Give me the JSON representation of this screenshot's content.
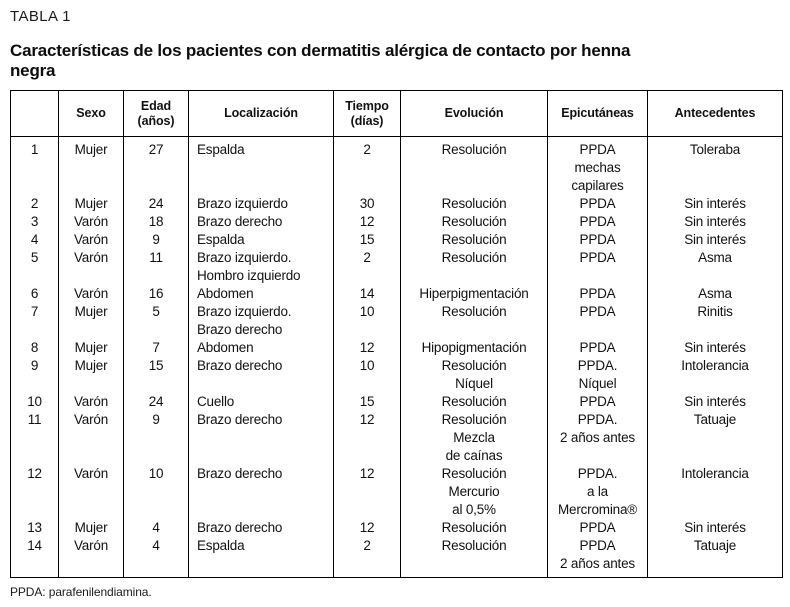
{
  "page": {
    "table_label": "TABLA 1",
    "title": "Características de los pacientes con dermatitis alérgica de contacto por henna\nnegra",
    "footnote": "PPDA: parafenilendiamina."
  },
  "table": {
    "headers": [
      "",
      "Sexo",
      "Edad\n(años)",
      "Localización",
      "Tiempo\n(días)",
      "Evolución",
      "Epicutáneas",
      "Antecedentes"
    ],
    "column_names": [
      "numero",
      "sexo",
      "edad",
      "localizacion",
      "tiempo",
      "evolucion",
      "epicutaneas",
      "antecedentes"
    ],
    "rows": [
      [
        "1",
        "Mujer",
        "27",
        "Espalda",
        "2",
        "Resolución",
        "PPDA\nmechas\ncapilares",
        "Toleraba"
      ],
      [
        "2",
        "Mujer",
        "24",
        "Brazo izquierdo",
        "30",
        "Resolución",
        "PPDA",
        "Sin interés"
      ],
      [
        "3",
        "Varón",
        "18",
        "Brazo derecho",
        "12",
        "Resolución",
        "PPDA",
        "Sin interés"
      ],
      [
        "4",
        "Varón",
        "9",
        "Espalda",
        "15",
        "Resolución",
        "PPDA",
        "Sin interés"
      ],
      [
        "5",
        "Varón",
        "11",
        "Brazo izquierdo.\nHombro izquierdo",
        "2",
        "Resolución",
        "PPDA",
        "Asma"
      ],
      [
        "6",
        "Varón",
        "16",
        "Abdomen",
        "14",
        "Hiperpigmentación",
        "PPDA",
        "Asma"
      ],
      [
        "7",
        "Mujer",
        "5",
        "Brazo izquierdo.\nBrazo derecho",
        "10",
        "Resolución",
        "PPDA",
        "Rinitis"
      ],
      [
        "8",
        "Mujer",
        "7",
        "Abdomen",
        "12",
        "Hipopigmentación",
        "PPDA",
        "Sin interés"
      ],
      [
        "9",
        "Mujer",
        "15",
        "Brazo derecho",
        "10",
        "Resolución\nNíquel",
        "PPDA.\nNíquel",
        "Intolerancia"
      ],
      [
        "10",
        "Varón",
        "24",
        "Cuello",
        "15",
        "Resolución",
        "PPDA",
        "Sin interés"
      ],
      [
        "11",
        "Varón",
        "9",
        "Brazo derecho",
        "12",
        "Resolución\nMezcla\nde caínas",
        "PPDA.\n2 años antes",
        "Tatuaje"
      ],
      [
        "12",
        "Varón",
        "10",
        "Brazo derecho",
        "12",
        "Resolución\nMercurio\nal 0,5%",
        "PPDA.\na la\nMercromina®",
        "Intolerancia"
      ],
      [
        "13",
        "Mujer",
        "4",
        "Brazo derecho",
        "12",
        "Resolución",
        "PPDA",
        "Sin interés"
      ],
      [
        "14",
        "Varón",
        "4",
        "Espalda",
        "2",
        "Resolución",
        "PPDA\n2 años antes",
        "Tatuaje"
      ]
    ]
  }
}
